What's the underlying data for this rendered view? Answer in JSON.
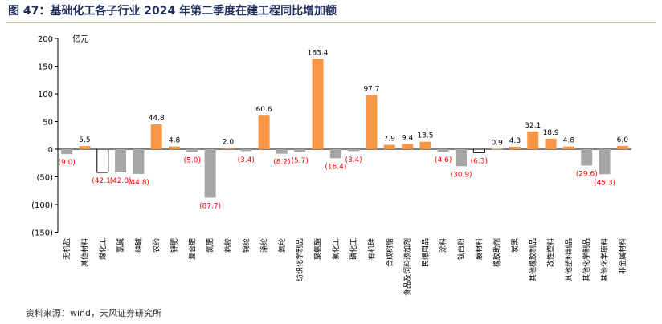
{
  "title": "图 47：基础化工各子行业 2024 年第二季度在建工程同比增加额",
  "source": "资料来源：wind，天风证券研究所",
  "colors": {
    "positive": "#f79646",
    "negative": "#a6a6a6",
    "highlight_outline": "#000000",
    "negative_label": "#ff0000"
  },
  "chart_data": {
    "type": "bar",
    "unit": "亿元",
    "ylim": [
      -150,
      200
    ],
    "yticks": [
      200,
      150,
      100,
      50,
      0,
      -50,
      -100,
      -150
    ],
    "ytick_labels": [
      "200",
      "150",
      "100",
      "50",
      "0",
      "(50)",
      "(100)",
      "(150)"
    ],
    "grid": false,
    "categories": [
      "无机盐",
      "其他材料",
      "煤化工",
      "氯碱",
      "纯碱",
      "农药",
      "钾肥",
      "复合肥",
      "氮肥",
      "粘胶",
      "锦纶",
      "涤纶",
      "氨纶",
      "纺织化学制品",
      "聚氨酯",
      "氟化工",
      "磷化工",
      "有机硅",
      "合成树脂",
      "食品及饲料添加剂",
      "民爆用品",
      "涂料",
      "钛白粉",
      "膜材料",
      "橡胶助剂",
      "炭黑",
      "其他橡胶制品",
      "改性塑料",
      "其他塑料制品",
      "其他化学制品",
      "其他化学原料",
      "非金属材料"
    ],
    "values": [
      -9.0,
      5.5,
      -42.1,
      -42.0,
      -44.8,
      44.8,
      4.8,
      -5.0,
      -87.7,
      2.0,
      -3.4,
      60.6,
      -8.2,
      -5.7,
      163.4,
      -16.4,
      -3.4,
      97.7,
      7.9,
      9.4,
      13.5,
      -4.6,
      -30.9,
      -6.3,
      0.9,
      4.3,
      32.1,
      18.9,
      4.8,
      -29.6,
      -45.3,
      6.0
    ],
    "data_labels": [
      "(9.0)",
      "5.5",
      "(42.1)",
      "(42.0)",
      "(44.8)",
      "44.8",
      "4.8",
      "(5.0)",
      "(87.7)",
      "2.0",
      "(3.4)",
      "60.6",
      "(8.2)",
      "(5.7)",
      "163.4",
      "(16.4)",
      "(3.4)",
      "97.7",
      "7.9",
      "9.4",
      "13.5",
      "(4.6)",
      "(30.9)",
      "(6.3)",
      "0.9",
      "4.3",
      "32.1",
      "18.9",
      "4.8",
      "(29.6)",
      "(45.3)",
      "6.0"
    ],
    "outlined": [
      "煤化工",
      "膜材料"
    ]
  }
}
